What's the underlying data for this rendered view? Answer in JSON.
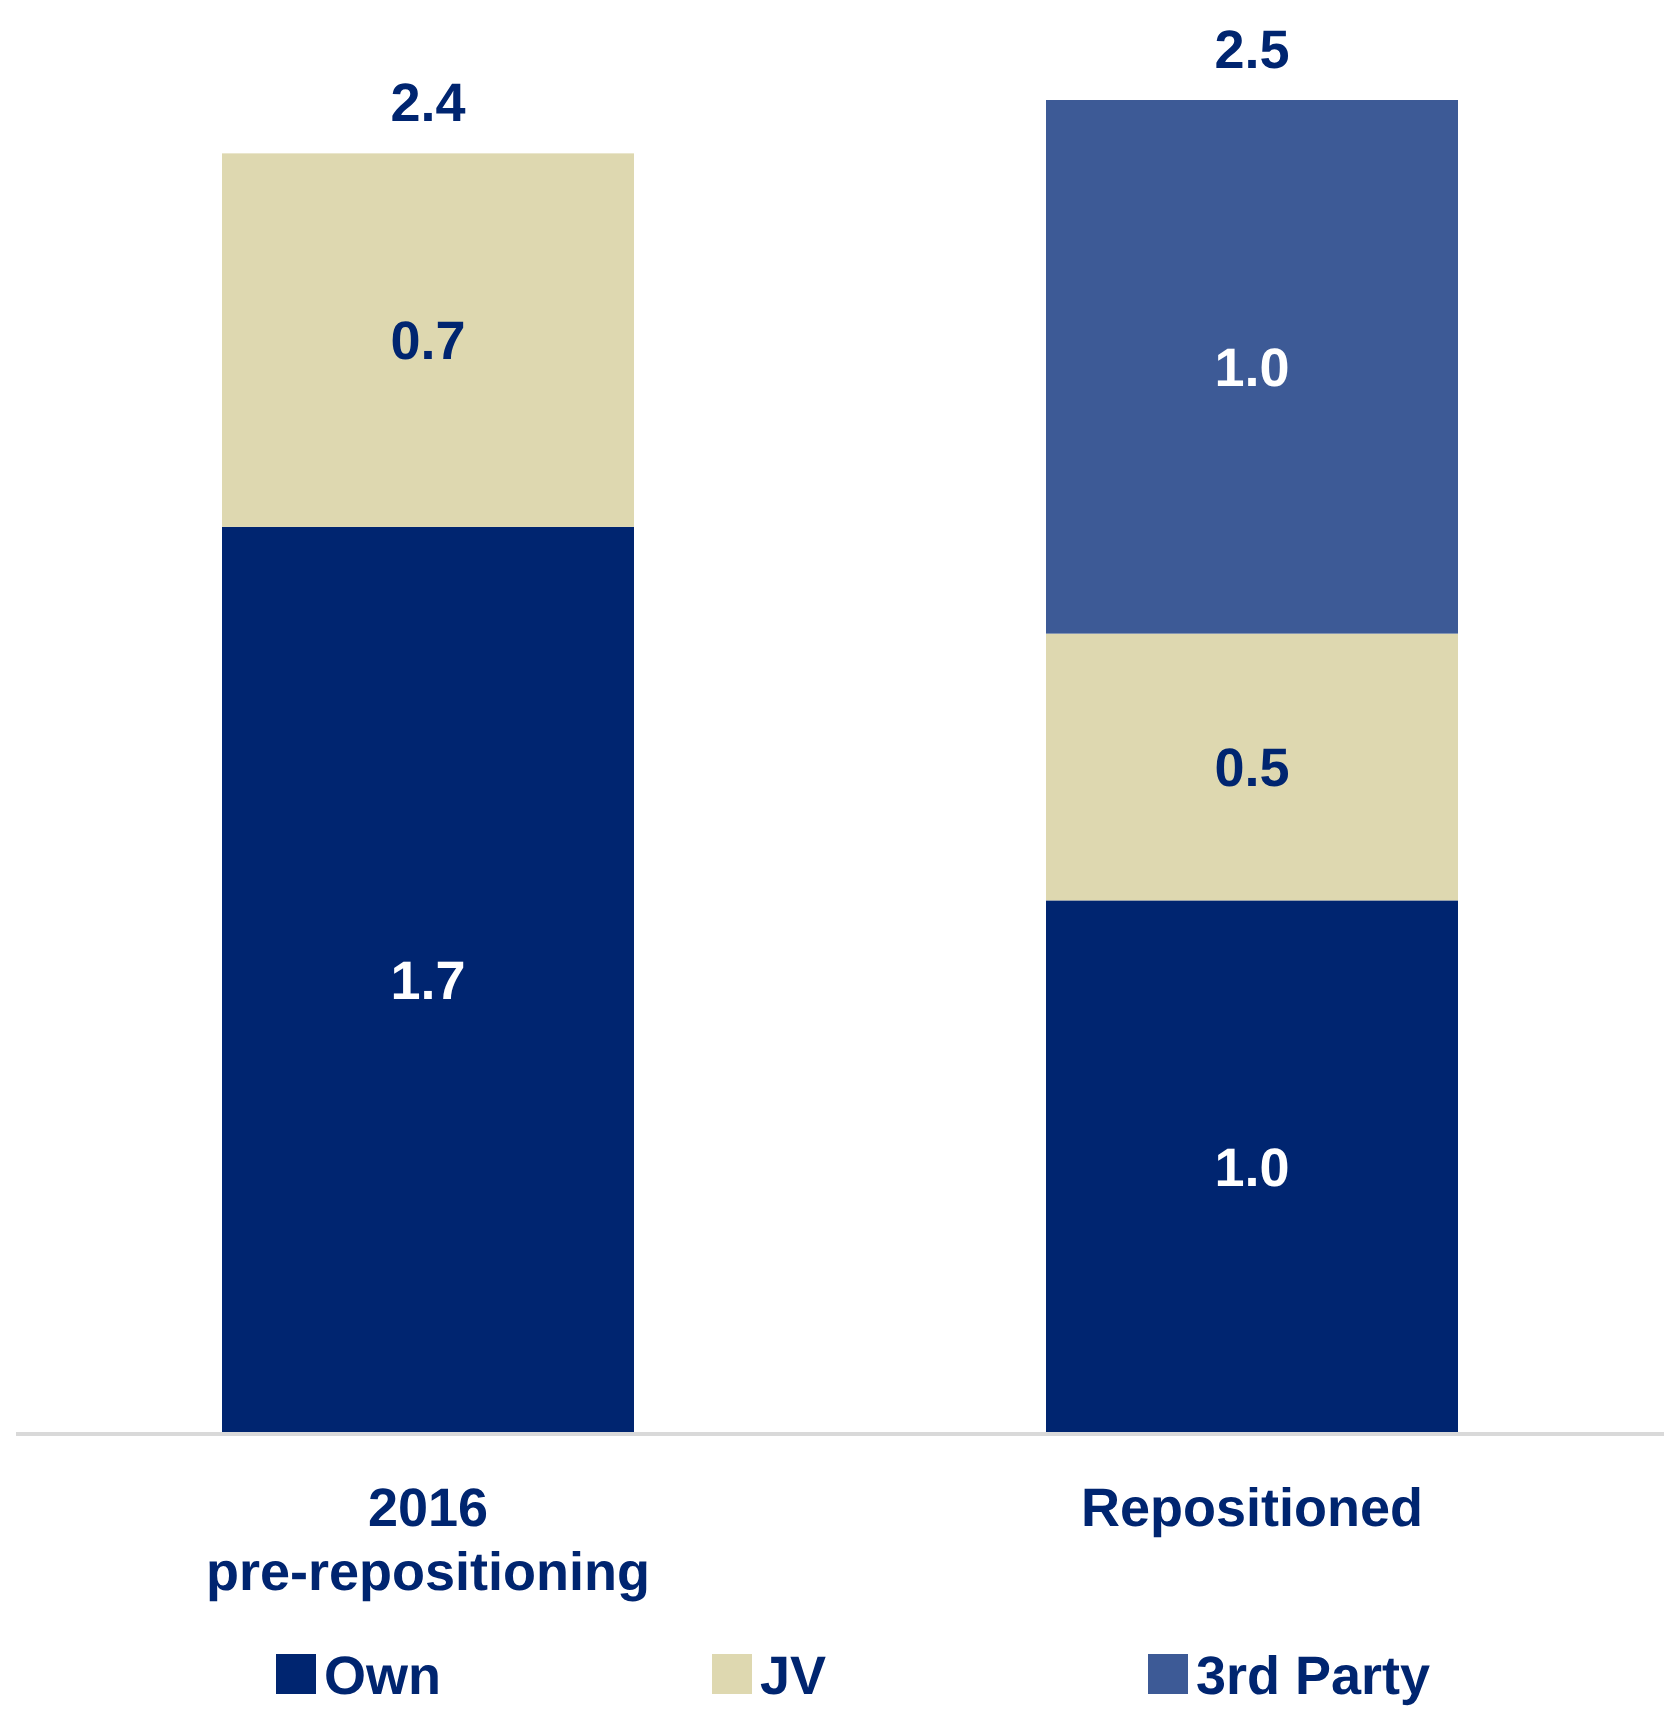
{
  "chart_data": {
    "type": "bar",
    "stacked": true,
    "categories": [
      "2016\npre-repositioning",
      "Repositioned"
    ],
    "series": [
      {
        "name": "Own",
        "color": "#002570",
        "values": [
          1.7,
          1.0
        ],
        "value_labels": [
          "1.7",
          "1.0"
        ]
      },
      {
        "name": "JV",
        "color": "#ded8b0",
        "values": [
          0.7,
          0.5
        ],
        "value_labels": [
          "0.7",
          "0.5"
        ]
      },
      {
        "name": "3rd Party",
        "color": "#3d5a96",
        "values": [
          null,
          1.0
        ],
        "value_labels": [
          null,
          "1.0"
        ]
      }
    ],
    "ylim": [
      0,
      2.5
    ],
    "totals": [
      "2.4",
      "2.5"
    ],
    "legend": "bottom",
    "tick_labels": "x"
  }
}
